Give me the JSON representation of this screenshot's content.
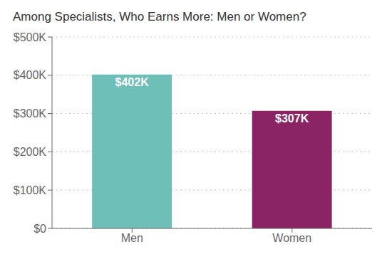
{
  "chart_data": {
    "type": "bar",
    "title": "Among Specialists, Who Earns More: Men or Women?",
    "categories": [
      "Men",
      "Women"
    ],
    "values": [
      402000,
      307000
    ],
    "value_labels": [
      "$402K",
      "$307K"
    ],
    "data_labels": true,
    "colors": [
      "#6dbfb8",
      "#8b2465"
    ],
    "ylim": [
      0,
      500000
    ],
    "yticks": [
      {
        "value": 0,
        "label": "$0"
      },
      {
        "value": 100000,
        "label": "$100K"
      },
      {
        "value": 200000,
        "label": "$200K"
      },
      {
        "value": 300000,
        "label": "$300K"
      },
      {
        "value": 400000,
        "label": "$400K"
      },
      {
        "value": 500000,
        "label": "$500K"
      }
    ],
    "grid": true
  }
}
